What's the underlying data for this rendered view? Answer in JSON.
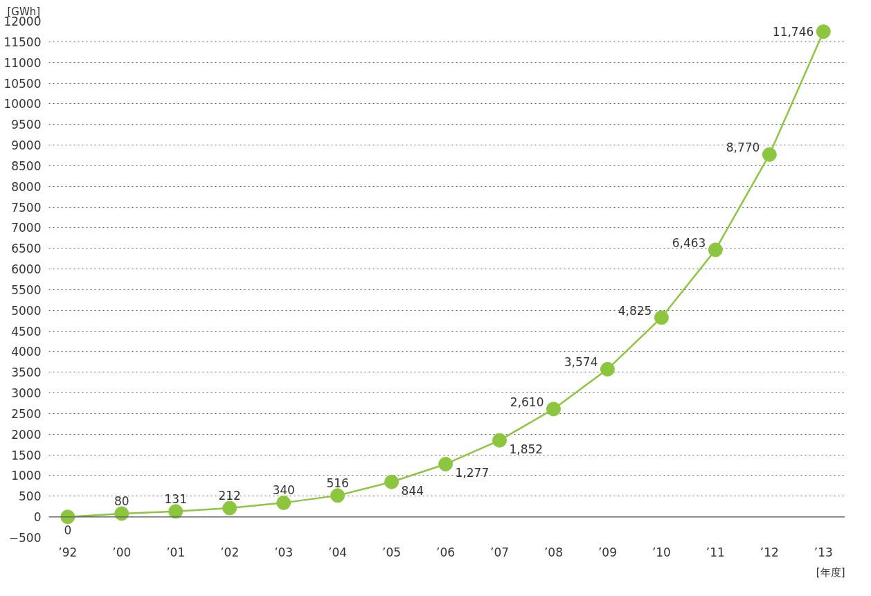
{
  "chart_data": {
    "type": "line",
    "ylabel": "[GWh]",
    "xlabel": "[年度]",
    "categories": [
      "’92",
      "’00",
      "’01",
      "’02",
      "’03",
      "’04",
      "’05",
      "’06",
      "’07",
      "’08",
      "’09",
      "’10",
      "’11",
      "’12",
      "’13"
    ],
    "series": [
      {
        "color": "#8cc63f",
        "values": [
          0,
          80,
          131,
          212,
          340,
          516,
          844,
          1277,
          1852,
          2610,
          3574,
          4825,
          6463,
          8770,
          11746
        ]
      }
    ],
    "value_labels": [
      "0",
      "80",
      "131",
      "212",
      "340",
      "516",
      "844",
      "1,277",
      "1,852",
      "2,610",
      "3,574",
      "4,825",
      "6,463",
      "8,770",
      "11,746"
    ],
    "ylim": [
      -500,
      12000
    ],
    "yticks": [
      -500,
      0,
      500,
      1000,
      1500,
      2000,
      2500,
      3000,
      3500,
      4000,
      4500,
      5000,
      5500,
      6000,
      6500,
      7000,
      7500,
      8000,
      8500,
      9000,
      9500,
      10000,
      10500,
      11000,
      11500,
      12000
    ],
    "grid": "y",
    "marker": "circle",
    "line_style": "solid"
  }
}
